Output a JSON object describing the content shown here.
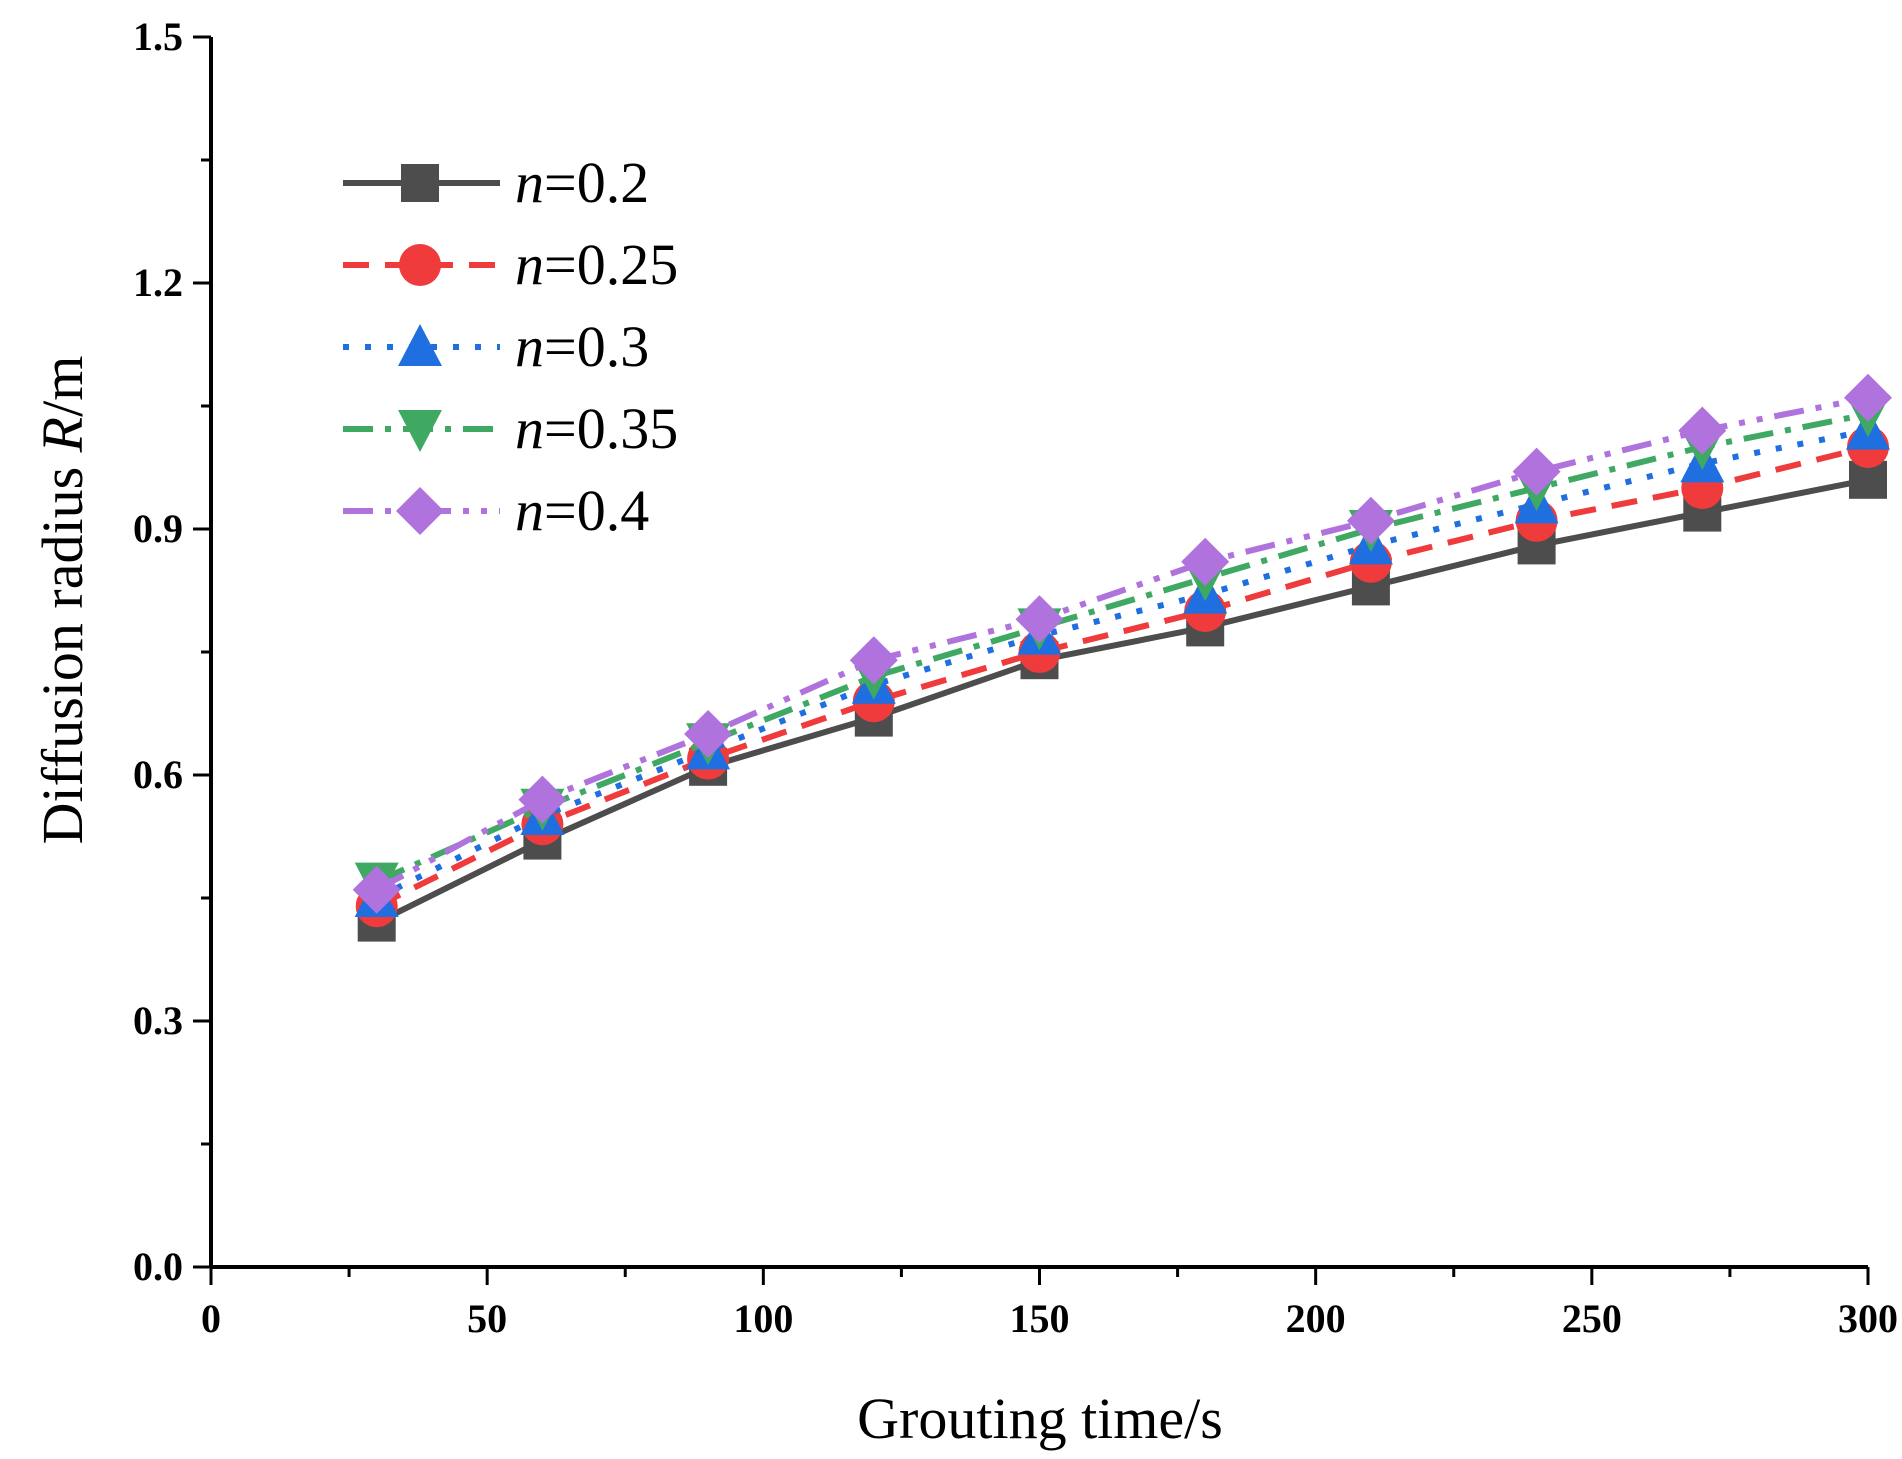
{
  "chart_data": {
    "type": "line",
    "title": "",
    "xlabel": "Grouting time/s",
    "ylabel_prefix": "Diffusion radius ",
    "ylabel_var": "R",
    "ylabel_suffix": "/m",
    "xlim": [
      0,
      300
    ],
    "ylim": [
      0,
      1.5
    ],
    "x_ticks": [
      0,
      50,
      100,
      150,
      200,
      250,
      300
    ],
    "y_ticks": [
      0.0,
      0.3,
      0.6,
      0.9,
      1.2,
      1.5
    ],
    "y_tick_labels": [
      "0.0",
      "0.3",
      "0.6",
      "0.9",
      "1.2",
      "1.5"
    ],
    "x": [
      30,
      60,
      90,
      120,
      150,
      180,
      210,
      240,
      270,
      300
    ],
    "legend_position": "upper-left",
    "series": [
      {
        "name": "n=0.2",
        "var": "n",
        "label_value": "=0.2",
        "color": "#4d4d4d",
        "dash": "solid",
        "marker": "square",
        "values": [
          0.42,
          0.52,
          0.61,
          0.67,
          0.74,
          0.78,
          0.83,
          0.88,
          0.92,
          0.96
        ]
      },
      {
        "name": "n=0.25",
        "var": "n",
        "label_value": "=0.25",
        "color": "#ef3b3b",
        "dash": "dash",
        "marker": "circle",
        "values": [
          0.44,
          0.54,
          0.62,
          0.69,
          0.75,
          0.8,
          0.86,
          0.91,
          0.95,
          1.0
        ]
      },
      {
        "name": "n=0.3",
        "var": "n",
        "label_value": "=0.3",
        "color": "#1f6fe0",
        "dash": "dot",
        "marker": "triangle-up",
        "values": [
          0.45,
          0.55,
          0.63,
          0.71,
          0.77,
          0.82,
          0.88,
          0.93,
          0.98,
          1.02
        ]
      },
      {
        "name": "n=0.35",
        "var": "n",
        "label_value": "=0.35",
        "color": "#3fa963",
        "dash": "dashdot",
        "marker": "triangle-down",
        "values": [
          0.47,
          0.56,
          0.64,
          0.72,
          0.78,
          0.84,
          0.9,
          0.95,
          1.0,
          1.04
        ]
      },
      {
        "name": "n=0.4",
        "var": "n",
        "label_value": "=0.4",
        "color": "#b072dc",
        "dash": "dashdotdot",
        "marker": "diamond",
        "values": [
          0.46,
          0.57,
          0.65,
          0.74,
          0.79,
          0.86,
          0.91,
          0.97,
          1.02,
          1.06
        ]
      }
    ]
  }
}
